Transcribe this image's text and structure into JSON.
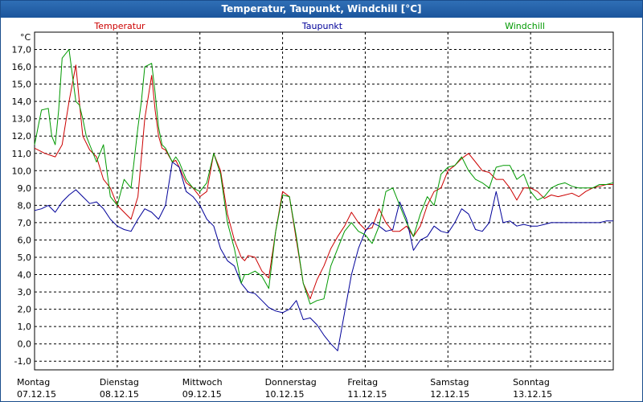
{
  "window": {
    "title": "Temperatur, Taupunkt, Windchill [°C]"
  },
  "chart_data": {
    "type": "line",
    "title": "Temperatur, Taupunkt, Windchill [°C]",
    "ylabel": "°C",
    "ylim": [
      -1.5,
      18.0
    ],
    "xlim": [
      0,
      168
    ],
    "grid": true,
    "legend": "top",
    "yticks": [
      "-1,0",
      "0,0",
      "1,0",
      "2,0",
      "3,0",
      "4,0",
      "5,0",
      "6,0",
      "7,0",
      "8,0",
      "9,0",
      "10,0",
      "11,0",
      "12,0",
      "13,0",
      "14,0",
      "15,0",
      "16,0",
      "17,0"
    ],
    "ytick_values": [
      -1,
      0,
      1,
      2,
      3,
      4,
      5,
      6,
      7,
      8,
      9,
      10,
      11,
      12,
      13,
      14,
      15,
      16,
      17
    ],
    "xticks": [
      {
        "day": "Montag",
        "date": "07.12.15",
        "h": 0
      },
      {
        "day": "Dienstag",
        "date": "08.12.15",
        "h": 24
      },
      {
        "day": "Mittwoch",
        "date": "09.12.15",
        "h": 48
      },
      {
        "day": "Donnerstag",
        "date": "10.12.15",
        "h": 72
      },
      {
        "day": "Freitag",
        "date": "11.12.15",
        "h": 96
      },
      {
        "day": "Samstag",
        "date": "12.12.15",
        "h": 120
      },
      {
        "day": "Sonntag",
        "date": "13.12.15",
        "h": 144
      }
    ],
    "series": [
      {
        "name": "Temperatur",
        "color": "#cc0000",
        "x": [
          0,
          3,
          6,
          8,
          10,
          12,
          13,
          14,
          16,
          18,
          20,
          22,
          24,
          26,
          28,
          30,
          32,
          34,
          35,
          36,
          37,
          38,
          40,
          41,
          42,
          44,
          46,
          48,
          50,
          52,
          54,
          56,
          58,
          60,
          61,
          62,
          64,
          66,
          68,
          70,
          72,
          74,
          76,
          78,
          80,
          82,
          84,
          86,
          88,
          90,
          92,
          94,
          96,
          98,
          100,
          102,
          104,
          106,
          108,
          110,
          112,
          114,
          116,
          118,
          120,
          122,
          124,
          126,
          128,
          130,
          132,
          134,
          136,
          138,
          140,
          142,
          144,
          146,
          148,
          150,
          152,
          154,
          156,
          158,
          160,
          162,
          164,
          166,
          168
        ],
        "y": [
          11.3,
          11.0,
          10.8,
          11.5,
          14.0,
          16.1,
          14.0,
          12.0,
          11.2,
          10.8,
          9.5,
          9.0,
          8.0,
          7.6,
          7.2,
          8.5,
          13.0,
          15.5,
          13.5,
          12.0,
          11.3,
          11.2,
          10.5,
          10.6,
          10.2,
          9.3,
          9.0,
          8.5,
          8.8,
          11.0,
          10.0,
          7.5,
          6.0,
          5.0,
          4.8,
          5.1,
          5.0,
          4.2,
          3.8,
          6.5,
          8.8,
          8.5,
          6.0,
          3.5,
          2.6,
          3.7,
          4.5,
          5.5,
          6.2,
          6.8,
          7.6,
          7.0,
          6.6,
          6.7,
          7.8,
          7.0,
          6.5,
          6.5,
          6.8,
          6.2,
          6.8,
          8.0,
          8.8,
          9.0,
          10.0,
          10.3,
          10.7,
          11.0,
          10.5,
          10.0,
          9.9,
          9.5,
          9.5,
          9.0,
          8.3,
          9.0,
          9.0,
          8.8,
          8.4,
          8.6,
          8.5,
          8.6,
          8.7,
          8.5,
          8.8,
          9.0,
          9.1,
          9.2,
          9.2
        ]
      },
      {
        "name": "Taupunkt",
        "color": "#000099",
        "x": [
          0,
          2,
          4,
          6,
          8,
          10,
          12,
          14,
          16,
          18,
          20,
          22,
          24,
          26,
          28,
          30,
          32,
          34,
          36,
          38,
          40,
          42,
          44,
          46,
          48,
          50,
          52,
          54,
          56,
          58,
          60,
          62,
          64,
          66,
          68,
          70,
          72,
          74,
          76,
          78,
          80,
          82,
          84,
          86,
          88,
          90,
          92,
          94,
          96,
          98,
          100,
          102,
          104,
          106,
          108,
          110,
          112,
          114,
          116,
          118,
          120,
          122,
          124,
          126,
          128,
          130,
          132,
          134,
          136,
          138,
          140,
          142,
          144,
          146,
          148,
          150,
          152,
          154,
          156,
          158,
          160,
          162,
          164,
          166,
          168
        ],
        "y": [
          7.7,
          7.8,
          8.0,
          7.6,
          8.2,
          8.6,
          8.9,
          8.5,
          8.1,
          8.2,
          7.8,
          7.2,
          6.8,
          6.6,
          6.5,
          7.2,
          7.8,
          7.6,
          7.2,
          8.0,
          10.5,
          10.2,
          8.8,
          8.5,
          8.0,
          7.2,
          6.8,
          5.5,
          4.8,
          4.5,
          3.5,
          3.0,
          2.9,
          2.5,
          2.1,
          1.9,
          1.8,
          2.0,
          2.5,
          1.4,
          1.5,
          1.1,
          0.5,
          0.0,
          -0.4,
          1.8,
          4.0,
          5.5,
          6.5,
          7.0,
          6.8,
          6.5,
          6.6,
          8.2,
          7.2,
          5.4,
          6.0,
          6.2,
          6.8,
          6.5,
          6.4,
          7.0,
          7.8,
          7.5,
          6.6,
          6.5,
          7.0,
          8.8,
          7.0,
          7.1,
          6.8,
          6.9,
          6.8,
          6.8,
          6.9,
          7.0,
          7.0,
          7.0,
          7.0,
          7.0,
          7.0,
          7.0,
          7.0,
          7.1,
          7.1
        ]
      },
      {
        "name": "Windchill",
        "color": "#009900",
        "x": [
          0,
          2,
          4,
          5,
          6,
          7,
          8,
          10,
          11,
          12,
          13,
          14,
          15,
          16,
          18,
          20,
          21,
          22,
          24,
          26,
          28,
          30,
          31,
          32,
          34,
          35,
          36,
          37,
          38,
          40,
          41,
          42,
          44,
          46,
          48,
          50,
          52,
          54,
          56,
          58,
          60,
          61,
          62,
          64,
          66,
          68,
          70,
          72,
          74,
          76,
          78,
          80,
          82,
          84,
          86,
          88,
          90,
          92,
          94,
          96,
          98,
          100,
          102,
          104,
          106,
          108,
          110,
          112,
          114,
          116,
          118,
          120,
          122,
          124,
          126,
          128,
          130,
          132,
          134,
          136,
          138,
          140,
          142,
          144,
          146,
          148,
          150,
          152,
          154,
          156,
          158,
          160,
          162,
          164,
          166,
          168
        ],
        "y": [
          11.5,
          13.5,
          13.6,
          12.0,
          11.5,
          13.5,
          16.5,
          17.0,
          15.5,
          14.0,
          13.8,
          13.0,
          12.0,
          11.5,
          10.5,
          11.5,
          10.0,
          8.5,
          8.0,
          9.5,
          9.0,
          12.5,
          14.0,
          16.0,
          16.2,
          14.5,
          12.5,
          11.5,
          11.3,
          10.5,
          10.8,
          10.5,
          9.5,
          9.0,
          8.8,
          9.3,
          11.0,
          9.8,
          7.0,
          5.5,
          3.5,
          4.0,
          4.0,
          4.2,
          3.9,
          3.2,
          6.5,
          8.6,
          8.5,
          6.2,
          3.5,
          2.3,
          2.5,
          2.6,
          4.5,
          5.5,
          6.5,
          7.0,
          6.5,
          6.3,
          5.8,
          6.8,
          8.8,
          9.0,
          8.0,
          7.0,
          6.2,
          7.5,
          8.5,
          8.0,
          9.8,
          10.2,
          10.3,
          10.8,
          10.0,
          9.5,
          9.3,
          9.0,
          10.2,
          10.3,
          10.3,
          9.5,
          9.8,
          8.8,
          8.3,
          8.5,
          9.0,
          9.2,
          9.3,
          9.1,
          9.0,
          9.0,
          9.0,
          9.2,
          9.2,
          9.3
        ]
      }
    ]
  }
}
